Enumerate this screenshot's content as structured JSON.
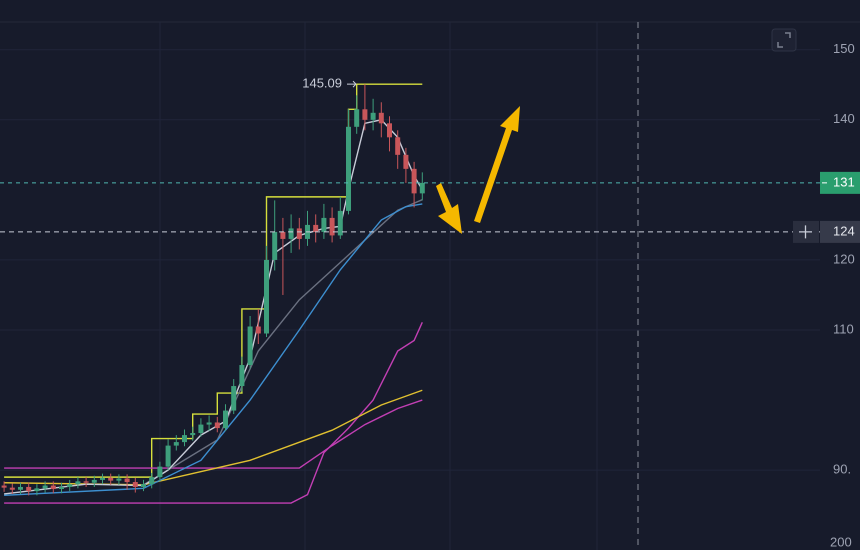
{
  "chart_data": {
    "type": "candlestick",
    "x": [
      0,
      1,
      2,
      3,
      4,
      5,
      6,
      7,
      8,
      9,
      10,
      11,
      12,
      13,
      14,
      15,
      16,
      17,
      18,
      19,
      20,
      21,
      22,
      23,
      24,
      25,
      26,
      27,
      28,
      29,
      30,
      31,
      32,
      33,
      34,
      35,
      36,
      37,
      38,
      39,
      40,
      41,
      42,
      43,
      44,
      45,
      46,
      47,
      48,
      49,
      50,
      51
    ],
    "open": [
      87.8,
      87.5,
      87.2,
      87.6,
      87.0,
      87.4,
      87.8,
      87.3,
      87.6,
      88.0,
      88.4,
      88.2,
      88.6,
      88.9,
      88.5,
      88.8,
      88.3,
      87.6,
      88.0,
      89.0,
      90.5,
      93.5,
      94.0,
      95.0,
      95.3,
      96.5,
      96.8,
      96.0,
      98.5,
      102.0,
      105.0,
      110.5,
      109.5,
      120.0,
      124.0,
      123.0,
      124.5,
      123.0,
      125.0,
      124.0,
      126.0,
      123.5,
      127.0,
      139.0,
      141.5,
      140.0,
      141.0,
      139.5,
      137.5,
      135.0,
      133.0,
      129.5
    ],
    "high": [
      88.4,
      88.1,
      88.2,
      88.2,
      88.0,
      88.4,
      88.4,
      88.2,
      88.6,
      89.0,
      89.0,
      89.2,
      89.5,
      89.5,
      89.4,
      89.4,
      88.9,
      88.6,
      89.6,
      91.2,
      94.4,
      95.0,
      95.8,
      96.2,
      97.4,
      97.8,
      97.6,
      99.4,
      103.0,
      106.2,
      112.0,
      113.0,
      122.0,
      128.5,
      126.0,
      126.5,
      126.0,
      127.0,
      126.5,
      128.0,
      127.5,
      129.0,
      141.5,
      143.5,
      145.09,
      143.0,
      142.5,
      140.5,
      138.5,
      136.0,
      134.0,
      132.5
    ],
    "low": [
      86.9,
      86.6,
      86.6,
      86.4,
      86.4,
      86.8,
      86.7,
      86.7,
      87.0,
      87.4,
      87.6,
      87.6,
      88.0,
      87.9,
      87.9,
      87.2,
      86.8,
      87.0,
      87.4,
      88.4,
      90.0,
      92.8,
      93.4,
      94.2,
      94.8,
      95.6,
      95.4,
      95.6,
      98.0,
      101.2,
      104.5,
      108.0,
      109.0,
      118.5,
      115.0,
      121.0,
      121.5,
      122.0,
      122.5,
      123.0,
      122.5,
      123.0,
      126.5,
      138.0,
      138.5,
      138.5,
      137.5,
      135.5,
      133.0,
      131.0,
      127.5,
      128.5
    ],
    "close": [
      87.5,
      87.2,
      87.6,
      87.0,
      87.4,
      87.8,
      87.3,
      87.6,
      88.0,
      88.4,
      88.2,
      88.6,
      88.9,
      88.5,
      88.8,
      88.3,
      87.6,
      88.0,
      89.0,
      90.5,
      93.5,
      94.0,
      95.0,
      95.3,
      96.5,
      96.8,
      96.0,
      98.5,
      102.0,
      105.0,
      110.5,
      109.5,
      120.0,
      124.0,
      123.0,
      124.5,
      123.0,
      125.0,
      124.0,
      126.0,
      123.5,
      127.0,
      139.0,
      141.5,
      140.0,
      141.0,
      139.5,
      137.5,
      135.0,
      133.0,
      129.5,
      131.0
    ],
    "up_color": "#3e9f7c",
    "down_color": "#c8565a",
    "series": [
      {
        "color": "#d6df3c",
        "x": [
          0,
          18,
          18,
          23,
          23,
          26,
          26,
          29,
          29,
          32,
          32,
          42,
          42,
          43,
          43,
          51
        ],
        "values": [
          89.0,
          89.0,
          94.5,
          94.5,
          98,
          98,
          101,
          101,
          113,
          113,
          129,
          129,
          141.5,
          141.5,
          145.09,
          145.09
        ]
      },
      {
        "color": "#c23fb4",
        "x": [
          0,
          35,
          37,
          39,
          42,
          45,
          48,
          50,
          51
        ],
        "values": [
          85.3,
          85.3,
          86.5,
          92.5,
          96,
          100,
          107,
          108.5,
          111.1
        ]
      },
      {
        "color": "#c23fb4",
        "x": [
          0,
          36,
          40,
          44,
          48,
          51
        ],
        "values": [
          90.3,
          90.3,
          93.5,
          96.5,
          98.8,
          100
        ]
      },
      {
        "color": "#e0c030",
        "x": [
          0,
          17,
          30,
          40,
          46,
          51
        ],
        "values": [
          88.2,
          87.9,
          91.4,
          95.7,
          99.3,
          101.4
        ]
      },
      {
        "color": "#6a7080",
        "x": [
          17,
          26,
          31,
          36,
          42,
          48,
          51
        ],
        "values": [
          87.9,
          94.3,
          107,
          114.3,
          120.7,
          127.1,
          128.6
        ]
      },
      {
        "color": "#3d8fd0",
        "x": [
          0,
          17,
          24,
          30,
          36,
          41,
          46,
          49,
          51
        ],
        "values": [
          86.4,
          87.4,
          91.4,
          100,
          110,
          118.6,
          125.7,
          127.6,
          128
        ]
      },
      {
        "color": "#c8ccd8",
        "x": [
          0,
          10,
          17,
          20,
          24,
          27,
          30,
          33,
          36,
          39,
          41,
          42,
          44,
          46,
          48,
          50,
          51
        ],
        "values": [
          86.6,
          88,
          87.8,
          90,
          95,
          97,
          106,
          121,
          123.5,
          124.5,
          124.8,
          130,
          139.5,
          140,
          137.5,
          132,
          130
        ]
      }
    ],
    "xlim": [
      -0.5,
      99.5
    ],
    "ylim": [
      78.6,
      157.1
    ],
    "yticks": [
      150,
      140,
      120,
      110,
      {
        "value": 90,
        "label": "90."
      }
    ],
    "bottom_label": "200",
    "grid": true,
    "high_annotation": 145.09,
    "last_price": 131,
    "crosshair_price": 124
  }
}
